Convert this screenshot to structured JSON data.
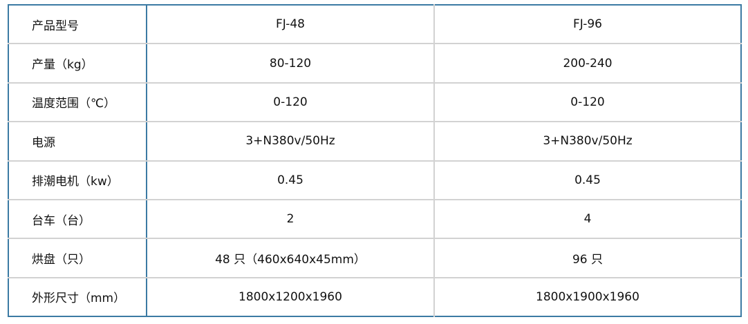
{
  "table": {
    "rows": [
      {
        "label": "产品型号",
        "fj48": "FJ-48",
        "fj96": "FJ-96"
      },
      {
        "label": "产量（kg）",
        "fj48": "80-120",
        "fj96": "200-240"
      },
      {
        "label": "温度范围（℃）",
        "fj48": "0-120",
        "fj96": "0-120"
      },
      {
        "label": "电源",
        "fj48": "3+N380v/50Hz",
        "fj96": "3+N380v/50Hz"
      },
      {
        "label": "排潮电机（kw）",
        "fj48": "0.45",
        "fj96": "0.45"
      },
      {
        "label": "台车（台）",
        "fj48": "2",
        "fj96": "4"
      },
      {
        "label": "烘盘（只）",
        "fj48": "48 只（460x640x45mm）",
        "fj96": "96 只"
      },
      {
        "label": "外形尺寸（mm）",
        "fj48": "1800x1200x1960",
        "fj96": "1800x1900x1960"
      }
    ]
  },
  "colors": {
    "outer_border": "#3b7aa3",
    "inner_border": "#d2d2d2"
  }
}
